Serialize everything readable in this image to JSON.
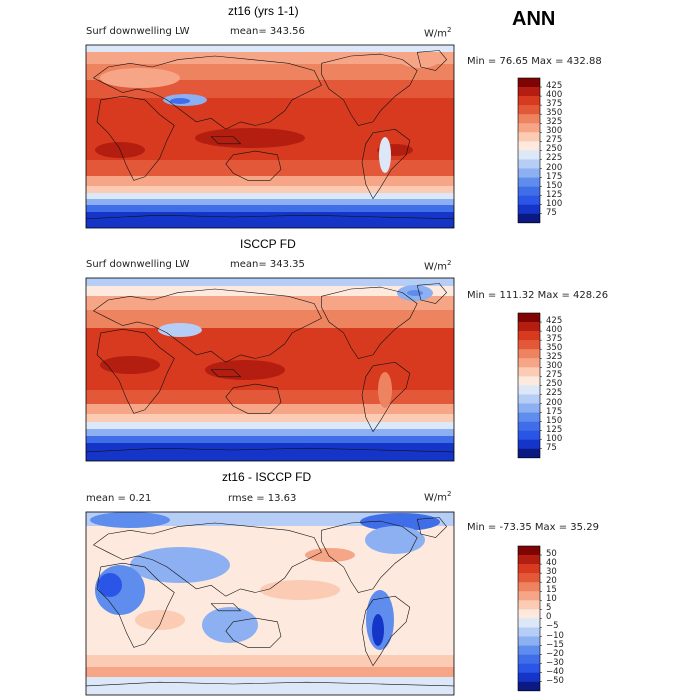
{
  "season": "ANN",
  "panels": [
    {
      "title": "zt16 (yrs 1-1)",
      "left_label": "Surf downwelling LW",
      "mean_label": "mean= 343.56",
      "units_base": "W/m",
      "units_sup": "2",
      "minmax": "Min =  76.65 Max = 432.88",
      "colorbar_labels": [
        "425",
        "400",
        "375",
        "350",
        "325",
        "300",
        "275",
        "250",
        "225",
        "200",
        "175",
        "150",
        "125",
        "100",
        "75"
      ]
    },
    {
      "title": "ISCCP FD",
      "left_label": "Surf downwelling LW",
      "mean_label": "mean= 343.35",
      "units_base": "W/m",
      "units_sup": "2",
      "minmax": "Min = 111.32 Max = 428.26",
      "colorbar_labels": [
        "425",
        "400",
        "375",
        "350",
        "325",
        "300",
        "275",
        "250",
        "225",
        "200",
        "175",
        "150",
        "125",
        "100",
        "75"
      ]
    },
    {
      "title": "zt16 - ISCCP FD",
      "left_label": "mean =    0.21",
      "mean_label": "rmse =   13.63",
      "units_base": "W/m",
      "units_sup": "2",
      "minmax": "Min = -73.35 Max =  35.29",
      "colorbar_labels": [
        "50",
        "40",
        "30",
        "20",
        "15",
        "10",
        "5",
        "0",
        "−5",
        "−10",
        "−15",
        "−20",
        "−30",
        "−40",
        "−50"
      ]
    }
  ],
  "chart_data": [
    {
      "type": "heatmap",
      "title": "zt16 (yrs 1-1)",
      "variable": "Surf downwelling LW",
      "units": "W/m2",
      "mean": 343.56,
      "min": 76.65,
      "max": 432.88,
      "contour_levels": [
        75,
        100,
        125,
        150,
        175,
        200,
        225,
        250,
        275,
        300,
        325,
        350,
        375,
        400,
        425
      ],
      "colors_low_to_high": [
        "#0a1a82",
        "#1535c8",
        "#2b55e6",
        "#3f6ee8",
        "#5f8ded",
        "#8cb0f1",
        "#b6cdf5",
        "#dce8f8",
        "#fde9dd",
        "#fbcbb4",
        "#f6a687",
        "#ee8360",
        "#e4583a",
        "#d73a1e",
        "#b41e10",
        "#7f0505"
      ]
    },
    {
      "type": "heatmap",
      "title": "ISCCP FD",
      "variable": "Surf downwelling LW",
      "units": "W/m2",
      "mean": 343.35,
      "min": 111.32,
      "max": 428.26,
      "contour_levels": [
        75,
        100,
        125,
        150,
        175,
        200,
        225,
        250,
        275,
        300,
        325,
        350,
        375,
        400,
        425
      ],
      "colors_low_to_high": [
        "#0a1a82",
        "#1535c8",
        "#2b55e6",
        "#3f6ee8",
        "#5f8ded",
        "#8cb0f1",
        "#b6cdf5",
        "#dce8f8",
        "#fde9dd",
        "#fbcbb4",
        "#f6a687",
        "#ee8360",
        "#e4583a",
        "#d73a1e",
        "#b41e10",
        "#7f0505"
      ]
    },
    {
      "type": "heatmap",
      "title": "zt16 - ISCCP FD",
      "units": "W/m2",
      "mean": 0.21,
      "rmse": 13.63,
      "min": -73.35,
      "max": 35.29,
      "contour_levels": [
        -50,
        -40,
        -30,
        -20,
        -15,
        -10,
        -5,
        0,
        5,
        10,
        15,
        20,
        30,
        40,
        50
      ],
      "colors_low_to_high": [
        "#0a1a82",
        "#1535c8",
        "#2b55e6",
        "#3f6ee8",
        "#5f8ded",
        "#8cb0f1",
        "#b6cdf5",
        "#dce8f8",
        "#fde9dd",
        "#fbcbb4",
        "#f6a687",
        "#ee8360",
        "#e4583a",
        "#d73a1e",
        "#b41e10",
        "#7f0505"
      ]
    }
  ]
}
